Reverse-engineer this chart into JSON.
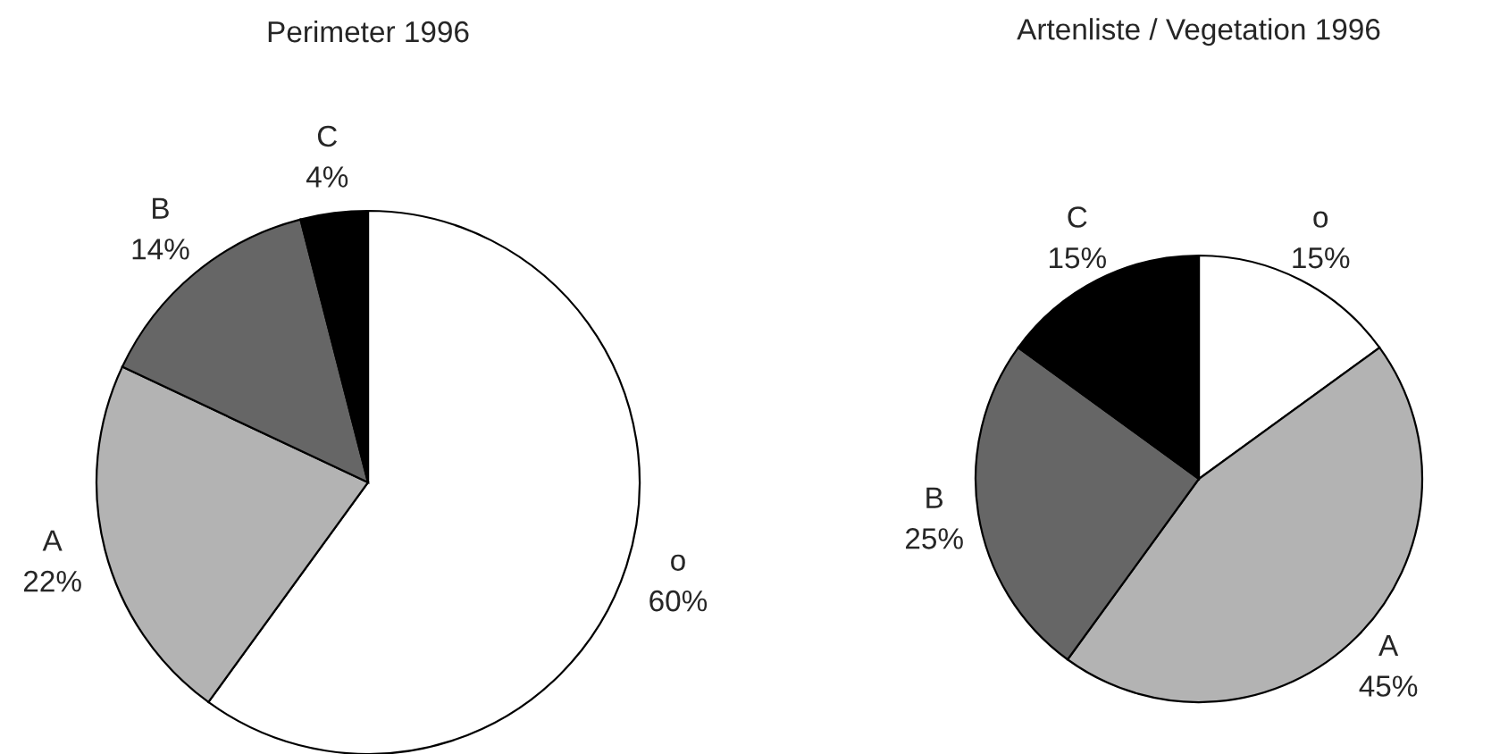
{
  "chart_data": [
    {
      "type": "pie",
      "title": "Perimeter 1996",
      "categories": [
        "o",
        "A",
        "B",
        "C"
      ],
      "values": [
        60,
        22,
        14,
        4
      ],
      "value_labels": [
        "60%",
        "22%",
        "14%",
        "4%"
      ],
      "colors": [
        "#ffffff",
        "#b3b3b3",
        "#666666",
        "#000000"
      ]
    },
    {
      "type": "pie",
      "title": "Artenliste / Vegetation 1996",
      "categories": [
        "o",
        "A",
        "B",
        "C"
      ],
      "values": [
        15,
        45,
        25,
        15
      ],
      "value_labels": [
        "15%",
        "45%",
        "25%",
        "15%"
      ],
      "colors": [
        "#ffffff",
        "#b3b3b3",
        "#666666",
        "#000000"
      ]
    }
  ]
}
